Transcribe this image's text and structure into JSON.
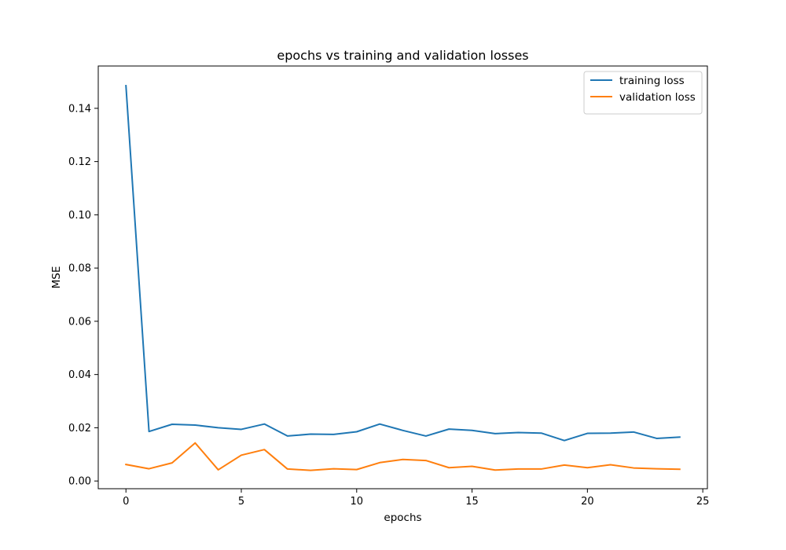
{
  "chart_data": {
    "type": "line",
    "title": "epochs vs training and validation losses",
    "xlabel": "epochs",
    "ylabel": "MSE",
    "x": [
      0,
      1,
      2,
      3,
      4,
      5,
      6,
      7,
      8,
      9,
      10,
      11,
      12,
      13,
      14,
      15,
      16,
      17,
      18,
      19,
      20,
      21,
      22,
      23,
      24
    ],
    "xlim": [
      -1.2,
      25.2
    ],
    "ylim": [
      -0.0029,
      0.1559
    ],
    "xticks": [
      0,
      5,
      10,
      15,
      20,
      25
    ],
    "yticks": [
      0.0,
      0.02,
      0.04,
      0.06,
      0.08,
      0.1,
      0.12,
      0.14
    ],
    "xtick_labels": [
      "0",
      "5",
      "10",
      "15",
      "20",
      "25"
    ],
    "ytick_labels": [
      "0.00",
      "0.02",
      "0.04",
      "0.06",
      "0.08",
      "0.10",
      "0.12",
      "0.14"
    ],
    "grid": false,
    "legend_position": "top-right",
    "series": [
      {
        "name": "training loss",
        "color": "#1f77b4",
        "values": [
          0.1485,
          0.0186,
          0.0213,
          0.021,
          0.02,
          0.0194,
          0.0214,
          0.0169,
          0.0176,
          0.0175,
          0.0185,
          0.0214,
          0.019,
          0.0169,
          0.0195,
          0.019,
          0.0178,
          0.0182,
          0.018,
          0.0152,
          0.0179,
          0.018,
          0.0184,
          0.016,
          0.0165
        ]
      },
      {
        "name": "validation loss",
        "color": "#ff7f0e",
        "values": [
          0.0062,
          0.0046,
          0.0068,
          0.0143,
          0.0042,
          0.0097,
          0.0118,
          0.0045,
          0.004,
          0.0046,
          0.0043,
          0.0069,
          0.0081,
          0.0077,
          0.005,
          0.0055,
          0.0041,
          0.0045,
          0.0045,
          0.006,
          0.005,
          0.0061,
          0.0049,
          0.0046,
          0.0044
        ]
      }
    ]
  }
}
